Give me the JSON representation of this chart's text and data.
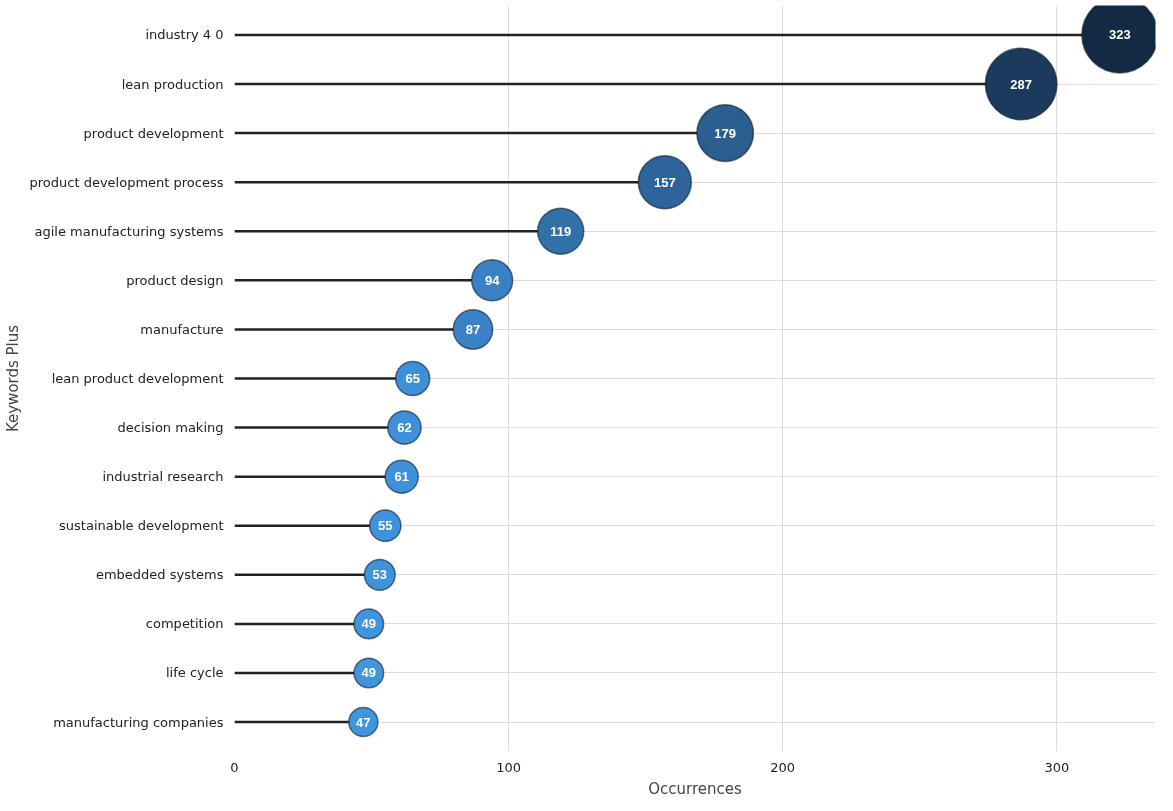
{
  "chart_data": {
    "type": "lollipop",
    "orientation": "horizontal",
    "xlabel": "Occurrences",
    "ylabel": "Keywords Plus",
    "categories": [
      "industry 4 0",
      "lean production",
      "product development",
      "product development process",
      "agile manufacturing systems",
      "product design",
      "manufacture",
      "lean product development",
      "decision making",
      "industrial research",
      "sustainable development",
      "embedded systems",
      "competition",
      "life cycle",
      "manufacturing companies"
    ],
    "values": [
      323,
      287,
      179,
      157,
      119,
      94,
      87,
      65,
      62,
      61,
      55,
      53,
      49,
      49,
      47
    ],
    "sizes": [
      1,
      0.889,
      0.554,
      0.486,
      0.368,
      0.291,
      0.269,
      0.201,
      0.192,
      0.189,
      0.17,
      0.164,
      0.152,
      0.152,
      0.146
    ],
    "colors": [
      "#132a45",
      "#1b3a5c",
      "#2a5f8f",
      "#2d6499",
      "#3270a8",
      "#3a80c4",
      "#3a82c8",
      "#3d8fd8",
      "#3d90d9",
      "#3d90da",
      "#3e93dc",
      "#3e93dd",
      "#3f95de",
      "#3f95de",
      "#3f96df"
    ],
    "xlim": [
      0,
      336
    ],
    "xticks": [
      0,
      100,
      200,
      300
    ],
    "grid": true,
    "data_labels": true,
    "marker": "circle"
  }
}
